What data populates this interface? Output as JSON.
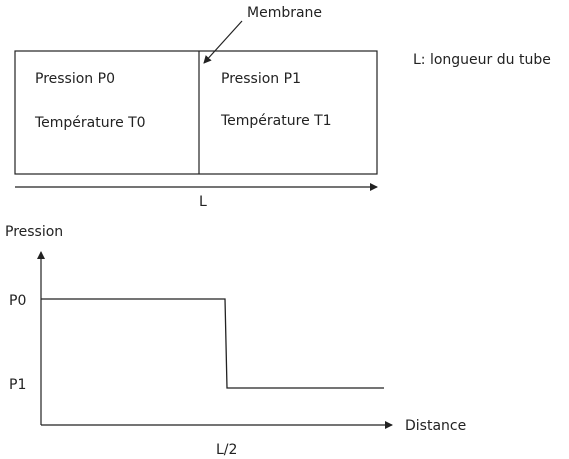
{
  "diagram": {
    "membrane_label": "Membrane",
    "legend_note": "L: longueur du tube",
    "left_chamber": {
      "pressure": "Pression P0",
      "temperature": "Température T0"
    },
    "right_chamber": {
      "pressure": "Pression P1",
      "temperature": "Température T1"
    },
    "length_label": "L"
  },
  "chart_data": {
    "type": "line",
    "title": "",
    "xlabel": "Distance",
    "ylabel": "Pression",
    "x_tick_labels": [
      "L/2"
    ],
    "y_tick_labels": [
      "P0",
      "P1"
    ],
    "series": [
      {
        "points": [
          {
            "x": "0",
            "y": "P0"
          },
          {
            "x": "L/2",
            "y": "P0"
          },
          {
            "x": "L/2",
            "y": "P1"
          },
          {
            "x": "L",
            "y": "P1"
          }
        ]
      }
    ],
    "grid": false,
    "legend": "none"
  },
  "colors": {
    "line": "#222222",
    "background": "#ffffff"
  }
}
